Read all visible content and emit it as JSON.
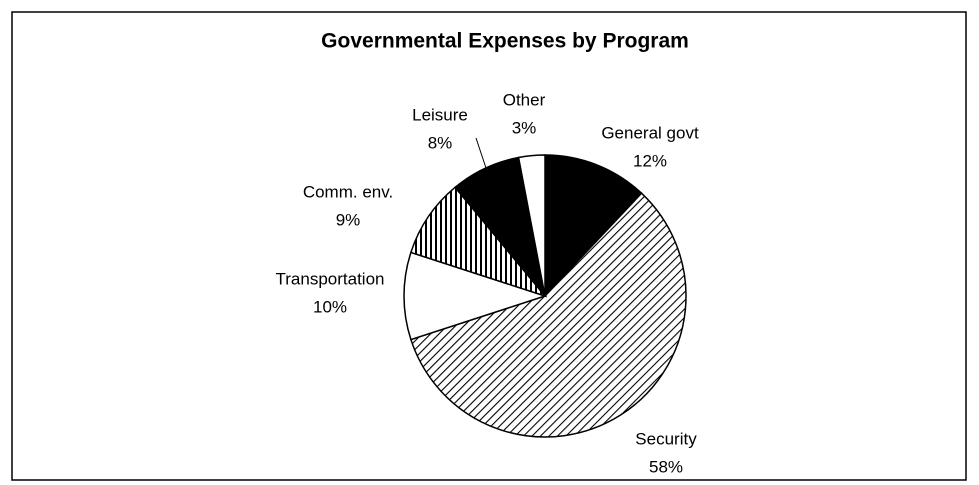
{
  "chart_data": {
    "type": "pie",
    "title": "Governmental Expenses by Program",
    "categories": [
      "General govt",
      "Security",
      "Transportation",
      "Comm. env.",
      "Leisure",
      "Other"
    ],
    "values": [
      12,
      58,
      10,
      9,
      8,
      3
    ],
    "value_labels": [
      "12%",
      "58%",
      "10%",
      "9%",
      "8%",
      "3%"
    ],
    "colors": [
      "#000000",
      "#ffffff",
      "#ffffff",
      "#ffffff",
      "#000000",
      "#ffffff"
    ],
    "patterns": [
      null,
      "diagonal",
      null,
      "vertical",
      null,
      null
    ]
  }
}
